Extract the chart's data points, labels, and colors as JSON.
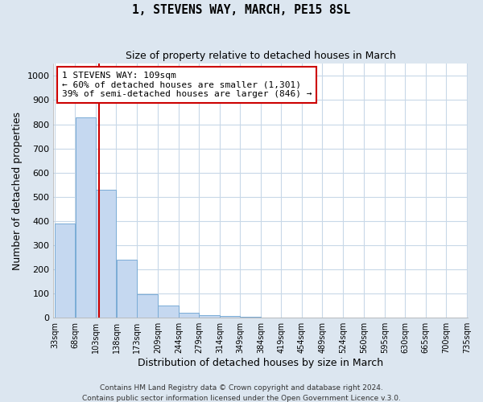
{
  "title": "1, STEVENS WAY, MARCH, PE15 8SL",
  "subtitle": "Size of property relative to detached houses in March",
  "xlabel": "Distribution of detached houses by size in March",
  "ylabel": "Number of detached properties",
  "bar_values": [
    390,
    828,
    530,
    240,
    95,
    50,
    20,
    10,
    5,
    2,
    0,
    0,
    0,
    0,
    0,
    0,
    0,
    0,
    0,
    0
  ],
  "bin_labels": [
    "33sqm",
    "68sqm",
    "103sqm",
    "138sqm",
    "173sqm",
    "209sqm",
    "244sqm",
    "279sqm",
    "314sqm",
    "349sqm",
    "384sqm",
    "419sqm",
    "454sqm",
    "489sqm",
    "524sqm",
    "560sqm",
    "595sqm",
    "630sqm",
    "665sqm",
    "700sqm",
    "735sqm"
  ],
  "bin_edges": [
    33,
    68,
    103,
    138,
    173,
    209,
    244,
    279,
    314,
    349,
    384,
    419,
    454,
    489,
    524,
    560,
    595,
    630,
    665,
    700,
    735
  ],
  "bar_color": "#c5d8f0",
  "bar_edge_color": "#7aacd6",
  "ylim": [
    0,
    1050
  ],
  "yticks": [
    0,
    100,
    200,
    300,
    400,
    500,
    600,
    700,
    800,
    900,
    1000
  ],
  "vline_x": 109,
  "vline_color": "#cc0000",
  "annotation_title": "1 STEVENS WAY: 109sqm",
  "annotation_line1": "← 60% of detached houses are smaller (1,301)",
  "annotation_line2": "39% of semi-detached houses are larger (846) →",
  "annotation_box_color": "#cc0000",
  "fig_bg_color": "#dce6f0",
  "ax_bg_color": "#ffffff",
  "grid_color": "#c8d8e8",
  "footer1": "Contains HM Land Registry data © Crown copyright and database right 2024.",
  "footer2": "Contains public sector information licensed under the Open Government Licence v.3.0."
}
